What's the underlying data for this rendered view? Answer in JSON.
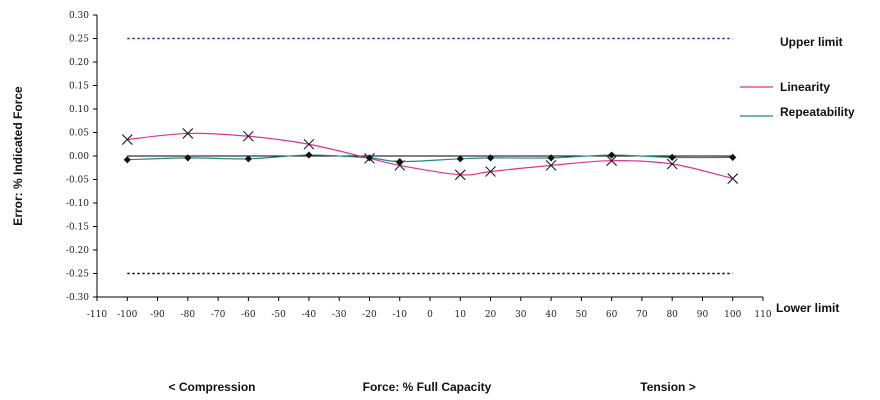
{
  "chart_data": {
    "type": "line",
    "ylabel": "Error: % Indicated Force",
    "xlabel": "Force: % Full Capacity",
    "x_left_label": "< Compression",
    "x_right_label": "Tension >",
    "xlim": [
      -110,
      110
    ],
    "ylim": [
      -0.3,
      0.3
    ],
    "x_ticks": [
      "-110",
      "-100",
      "-90",
      "-80",
      "-70",
      "-60",
      "-50",
      "-40",
      "-30",
      "-20",
      "-10",
      "0",
      "10",
      "20",
      "30",
      "40",
      "50",
      "60",
      "70",
      "80",
      "90",
      "100",
      "110"
    ],
    "y_ticks": [
      "0.30",
      "0.25",
      "0.20",
      "0.15",
      "0.10",
      "0.05",
      "0.00",
      "-0.05",
      "-0.10",
      "-0.15",
      "-0.20",
      "-0.25",
      "-0.30"
    ],
    "grid": false,
    "limits": [
      {
        "name": "Upper limit",
        "value": 0.25
      },
      {
        "name": "Lower limit",
        "value": -0.25
      }
    ],
    "legend": {
      "placement": "right"
    },
    "series": [
      {
        "name": "Linearity",
        "color": "#e0338a",
        "marker": "x",
        "x": [
          -100,
          -80,
          -60,
          -40,
          -20,
          -10,
          10,
          20,
          40,
          60,
          80,
          100
        ],
        "y": [
          0.035,
          0.048,
          0.042,
          0.025,
          -0.005,
          -0.02,
          -0.04,
          -0.033,
          -0.02,
          -0.01,
          -0.017,
          -0.048
        ]
      },
      {
        "name": "Repeatability",
        "color": "#1f8a80",
        "marker": "diamond",
        "x": [
          -100,
          -80,
          -60,
          -40,
          -20,
          -10,
          10,
          20,
          40,
          60,
          80,
          100
        ],
        "y": [
          -0.008,
          -0.004,
          -0.006,
          0.002,
          -0.004,
          -0.012,
          -0.006,
          -0.004,
          -0.004,
          0.002,
          -0.003,
          -0.003
        ]
      }
    ],
    "zero_line": {
      "from": -100,
      "to": 100,
      "value": 0.0
    }
  }
}
